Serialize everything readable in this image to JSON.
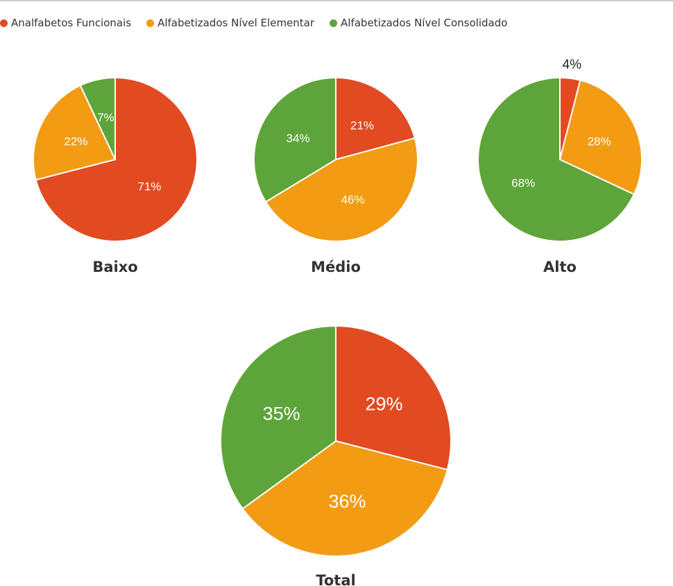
{
  "chart_data": [
    {
      "type": "pie",
      "title": "Baixo",
      "categories": [
        "Analfabetos Funcionais",
        "Alfabetizados Nível Elementar",
        "Alfabetizados Nível Consolidado"
      ],
      "values": [
        71,
        22,
        7
      ],
      "labels": [
        "71%",
        "22%",
        "7%"
      ]
    },
    {
      "type": "pie",
      "title": "Médio",
      "categories": [
        "Analfabetos Funcionais",
        "Alfabetizados Nível Elementar",
        "Alfabetizados Nível Consolidado"
      ],
      "values": [
        21,
        46,
        34
      ],
      "labels": [
        "21%",
        "46%",
        "34%"
      ]
    },
    {
      "type": "pie",
      "title": "Alto",
      "categories": [
        "Analfabetos Funcionais",
        "Alfabetizados Nível Elementar",
        "Alfabetizados Nível Consolidado"
      ],
      "values": [
        4,
        28,
        68
      ],
      "labels": [
        "4%",
        "28%",
        "68%"
      ]
    },
    {
      "type": "pie",
      "title": "Total",
      "categories": [
        "Analfabetos Funcionais",
        "Alfabetizados Nível Elementar",
        "Alfabetizados Nível Consolidado"
      ],
      "values": [
        29,
        36,
        35
      ],
      "labels": [
        "29%",
        "36%",
        "35%"
      ]
    }
  ],
  "legend": {
    "placement": "top-left",
    "items": [
      {
        "label": "Analfabetos Funcionais",
        "color": "#E24A22"
      },
      {
        "label": "Alfabetizados Nível Elementar",
        "color": "#F29B13"
      },
      {
        "label": "Alfabetizados Nível Consolidado",
        "color": "#5DA53A"
      }
    ]
  }
}
